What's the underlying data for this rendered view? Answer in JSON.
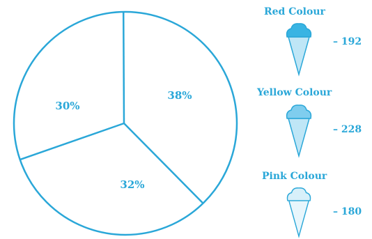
{
  "colors": {
    "stroke": "#2aa7d8",
    "fill_dark": "#39b4e3",
    "fill_light": "#bfe6f6"
  },
  "chart_data": {
    "type": "pie",
    "slices": [
      {
        "label": "38%",
        "value": 38
      },
      {
        "label": "32%",
        "value": 32
      },
      {
        "label": "30%",
        "value": 30
      }
    ]
  },
  "legend": [
    {
      "title": "Red Colour",
      "count": "– 192",
      "icon": "ice-cream-cone-icon",
      "scoop_color": "#39b4e3"
    },
    {
      "title": "Yellow Colour",
      "count": "– 228",
      "icon": "ice-cream-cone-icon",
      "scoop_color": "#7fcdee"
    },
    {
      "title": "Pink Colour",
      "count": "– 180",
      "icon": "ice-cream-cone-icon",
      "scoop_color": "#d8f0fa"
    }
  ]
}
